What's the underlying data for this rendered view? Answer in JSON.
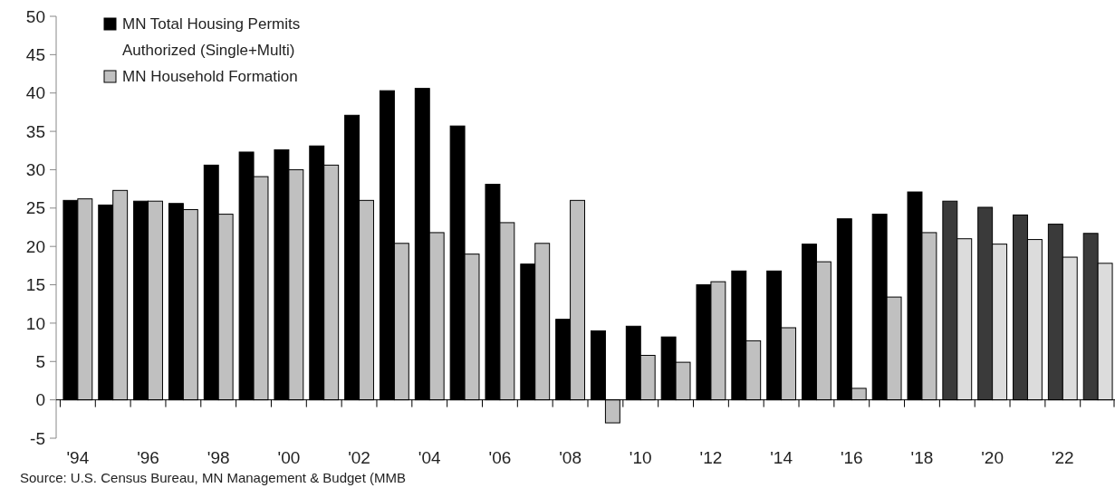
{
  "chart_data": {
    "type": "bar",
    "categories": [
      "'94",
      null,
      "'96",
      null,
      "'98",
      null,
      "'00",
      null,
      "'02",
      null,
      "'04",
      null,
      "'06",
      null,
      "'08",
      null,
      "'10",
      null,
      "'12",
      null,
      "'14",
      null,
      "'16",
      null,
      "'18",
      null,
      "'20",
      null,
      "'22",
      null
    ],
    "series": [
      {
        "name": "MN Total Housing Permits Authorized (Single+Multi)",
        "color": "#000000",
        "colors": [
          "#000000",
          "#000000",
          "#000000",
          "#000000",
          "#000000",
          "#000000",
          "#000000",
          "#000000",
          "#000000",
          "#000000",
          "#000000",
          "#000000",
          "#000000",
          "#000000",
          "#000000",
          "#000000",
          "#000000",
          "#000000",
          "#000000",
          "#000000",
          "#000000",
          "#000000",
          "#000000",
          "#000000",
          "#000000",
          "#3a3a3a",
          "#3a3a3a",
          "#3a3a3a",
          "#3a3a3a",
          "#3a3a3a"
        ],
        "values": [
          26.0,
          25.4,
          25.9,
          25.6,
          30.6,
          32.3,
          32.6,
          33.1,
          37.1,
          40.3,
          40.6,
          35.7,
          28.1,
          17.7,
          10.5,
          9.0,
          9.6,
          8.2,
          15.0,
          16.8,
          16.8,
          20.3,
          23.6,
          24.2,
          27.1,
          25.9,
          25.1,
          24.1,
          22.9,
          21.7
        ]
      },
      {
        "name": "MN Household Formation",
        "color": "#c0c0c0",
        "colors": [
          "#c0c0c0",
          "#c0c0c0",
          "#c0c0c0",
          "#c0c0c0",
          "#c0c0c0",
          "#c0c0c0",
          "#c0c0c0",
          "#c0c0c0",
          "#c0c0c0",
          "#c0c0c0",
          "#c0c0c0",
          "#c0c0c0",
          "#c0c0c0",
          "#c0c0c0",
          "#c0c0c0",
          "#c0c0c0",
          "#c0c0c0",
          "#c0c0c0",
          "#c0c0c0",
          "#c0c0c0",
          "#c0c0c0",
          "#c0c0c0",
          "#c0c0c0",
          "#c0c0c0",
          "#c0c0c0",
          "#dcdcdc",
          "#dcdcdc",
          "#dcdcdc",
          "#dcdcdc",
          "#dcdcdc"
        ],
        "values": [
          26.2,
          27.3,
          25.9,
          24.8,
          24.2,
          29.1,
          30.0,
          30.6,
          26.0,
          20.4,
          21.8,
          19.0,
          23.1,
          20.4,
          26.0,
          -3.0,
          5.8,
          4.9,
          15.4,
          7.7,
          9.4,
          18.0,
          1.5,
          13.4,
          21.8,
          21.0,
          20.3,
          20.9,
          18.6,
          17.8
        ]
      }
    ],
    "ylim": [
      -5,
      50
    ],
    "yticks": [
      -5,
      0,
      5,
      10,
      15,
      20,
      25,
      30,
      35,
      40,
      45,
      50
    ],
    "legend": "top left",
    "annotations": [
      "Source:  U.S. Census Bureau, MN Management  & Budget (MMB"
    ]
  }
}
